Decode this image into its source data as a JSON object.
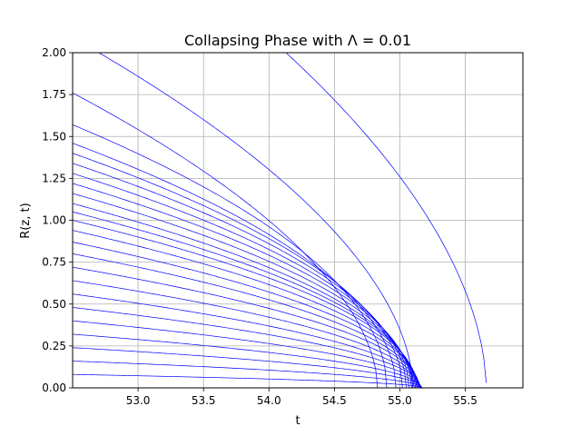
{
  "chart_data": {
    "type": "line",
    "title": "Collapsing Phase with Λ = 0.01",
    "xlabel": "t",
    "ylabel": "R(z, t)",
    "xlim": [
      52.5,
      55.94
    ],
    "ylim": [
      0.0,
      2.0
    ],
    "xticks": [
      "53.0",
      "53.5",
      "54.0",
      "54.5",
      "55.0",
      "55.5"
    ],
    "xtick_values": [
      53.0,
      53.5,
      54.0,
      54.5,
      55.0,
      55.5
    ],
    "yticks": [
      "0.00",
      "0.25",
      "0.50",
      "0.75",
      "1.00",
      "1.25",
      "1.50",
      "1.75",
      "2.00"
    ],
    "ytick_values": [
      0.0,
      0.25,
      0.5,
      0.75,
      1.0,
      1.25,
      1.5,
      1.75,
      2.0
    ],
    "grid": true,
    "line_color": "#0000ff",
    "series": [
      {
        "r0": 0.08,
        "tc": 55.17,
        "shape": 0.5
      },
      {
        "r0": 0.16,
        "tc": 55.17,
        "shape": 0.5
      },
      {
        "r0": 0.24,
        "tc": 55.17,
        "shape": 0.5
      },
      {
        "r0": 0.32,
        "tc": 55.16,
        "shape": 0.5
      },
      {
        "r0": 0.4,
        "tc": 55.16,
        "shape": 0.5
      },
      {
        "r0": 0.48,
        "tc": 55.16,
        "shape": 0.5
      },
      {
        "r0": 0.56,
        "tc": 55.15,
        "shape": 0.5
      },
      {
        "r0": 0.64,
        "tc": 55.15,
        "shape": 0.5
      },
      {
        "r0": 0.72,
        "tc": 55.15,
        "shape": 0.5
      },
      {
        "r0": 0.8,
        "tc": 55.14,
        "shape": 0.5
      },
      {
        "r0": 0.87,
        "tc": 55.14,
        "shape": 0.5
      },
      {
        "r0": 0.94,
        "tc": 55.13,
        "shape": 0.5
      },
      {
        "r0": 1.0,
        "tc": 55.13,
        "shape": 0.5
      },
      {
        "r0": 1.05,
        "tc": 55.12,
        "shape": 0.5
      },
      {
        "r0": 1.1,
        "tc": 55.11,
        "shape": 0.5
      },
      {
        "r0": 1.16,
        "tc": 55.1,
        "shape": 0.5
      },
      {
        "r0": 1.22,
        "tc": 55.09,
        "shape": 0.5
      },
      {
        "r0": 1.28,
        "tc": 55.07,
        "shape": 0.5
      },
      {
        "r0": 1.34,
        "tc": 55.05,
        "shape": 0.5
      },
      {
        "r0": 1.4,
        "tc": 55.02,
        "shape": 0.5
      },
      {
        "r0": 1.46,
        "tc": 54.97,
        "shape": 0.5
      },
      {
        "r0": 1.57,
        "tc": 54.9,
        "shape": 0.5
      },
      {
        "r0": 1.76,
        "tc": 54.83,
        "shape": 0.55
      },
      {
        "r0": 2.09,
        "tc": 55.1,
        "shape": 0.55
      },
      {
        "r0": 2.98,
        "tc": 55.66,
        "shape": 0.55,
        "rend": 0.03
      }
    ]
  }
}
